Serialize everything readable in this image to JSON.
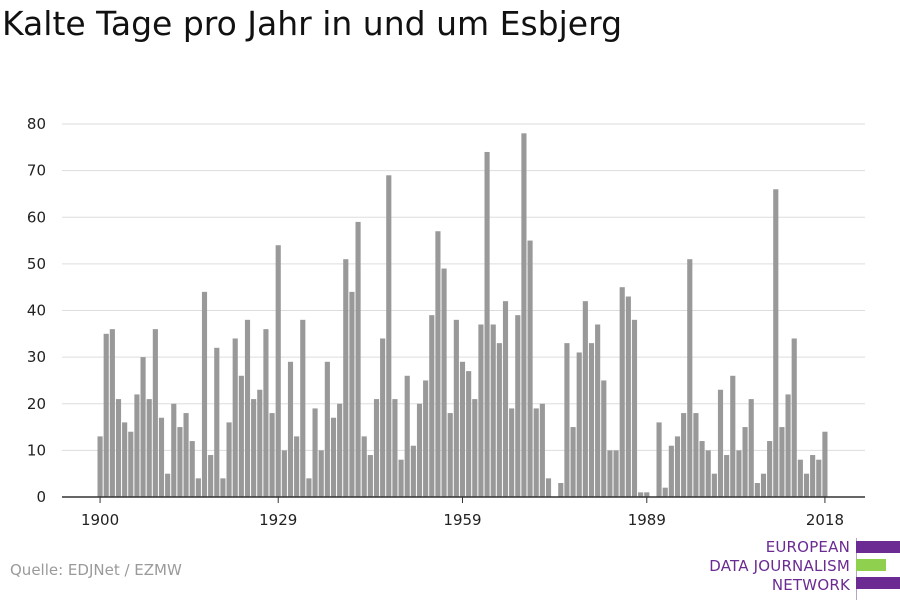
{
  "title": "Kalte Tage pro Jahr in und um Esbjerg",
  "source": "Quelle: EDJNet / EZMW",
  "logo": {
    "lines": [
      "EUROPEAN",
      "DATA JOURNALISM",
      "NETWORK"
    ],
    "colors": {
      "purple": "#6b2b93",
      "green": "#8fd14f"
    }
  },
  "colors": {
    "bar": "#999999",
    "grid": "#dddddd",
    "axis": "#333333",
    "text": "#222222"
  },
  "chart_data": {
    "type": "bar",
    "title": "Kalte Tage pro Jahr in und um Esbjerg",
    "xlabel": "",
    "ylabel": "",
    "ylim": [
      0,
      80
    ],
    "yticks": [
      0,
      10,
      20,
      30,
      40,
      50,
      60,
      70,
      80
    ],
    "xticks": [
      1900,
      1929,
      1959,
      1989,
      2018
    ],
    "grid": true,
    "x": [
      1900,
      1901,
      1902,
      1903,
      1904,
      1905,
      1906,
      1907,
      1908,
      1909,
      1910,
      1911,
      1912,
      1913,
      1914,
      1915,
      1916,
      1917,
      1918,
      1919,
      1920,
      1921,
      1922,
      1923,
      1924,
      1925,
      1926,
      1927,
      1928,
      1929,
      1930,
      1931,
      1932,
      1933,
      1934,
      1935,
      1936,
      1937,
      1938,
      1939,
      1940,
      1941,
      1942,
      1943,
      1944,
      1945,
      1946,
      1947,
      1948,
      1949,
      1950,
      1951,
      1952,
      1953,
      1954,
      1955,
      1956,
      1957,
      1958,
      1959,
      1960,
      1961,
      1962,
      1963,
      1964,
      1965,
      1966,
      1967,
      1968,
      1969,
      1970,
      1971,
      1972,
      1973,
      1974,
      1975,
      1976,
      1977,
      1978,
      1979,
      1980,
      1981,
      1982,
      1983,
      1984,
      1985,
      1986,
      1987,
      1988,
      1989,
      1990,
      1991,
      1992,
      1993,
      1994,
      1995,
      1996,
      1997,
      1998,
      1999,
      2000,
      2001,
      2002,
      2003,
      2004,
      2005,
      2006,
      2007,
      2008,
      2009,
      2010,
      2011,
      2012,
      2013,
      2014,
      2015,
      2016,
      2017,
      2018
    ],
    "values": [
      13,
      35,
      36,
      21,
      16,
      14,
      22,
      30,
      21,
      36,
      17,
      5,
      20,
      15,
      18,
      12,
      4,
      44,
      9,
      32,
      4,
      16,
      34,
      26,
      38,
      21,
      23,
      36,
      18,
      54,
      10,
      29,
      13,
      38,
      4,
      19,
      10,
      29,
      17,
      20,
      51,
      44,
      59,
      13,
      9,
      21,
      34,
      69,
      21,
      8,
      26,
      11,
      20,
      25,
      39,
      57,
      49,
      18,
      38,
      29,
      27,
      21,
      37,
      74,
      37,
      33,
      42,
      19,
      39,
      78,
      55,
      19,
      20,
      4,
      0,
      3,
      33,
      15,
      31,
      42,
      33,
      37,
      25,
      10,
      10,
      45,
      43,
      38,
      1,
      1,
      0,
      16,
      2,
      11,
      13,
      18,
      51,
      18,
      12,
      10,
      5,
      23,
      9,
      26,
      10,
      15,
      21,
      3,
      5,
      12,
      66,
      15,
      22,
      34,
      8,
      5,
      9,
      8,
      14
    ]
  }
}
